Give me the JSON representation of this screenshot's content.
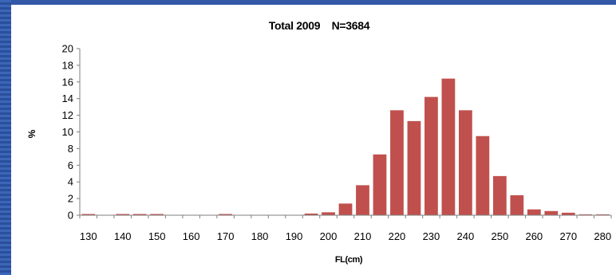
{
  "chart_data": {
    "type": "bar",
    "title": "Total 2009    N=3684",
    "xlabel": "FL(cm)",
    "ylabel": "%",
    "ylim": [
      0,
      20
    ],
    "yticks": [
      0,
      2,
      4,
      6,
      8,
      10,
      12,
      14,
      16,
      18,
      20
    ],
    "xticks": [
      130,
      140,
      150,
      160,
      170,
      180,
      190,
      200,
      210,
      220,
      230,
      240,
      250,
      260,
      270,
      280
    ],
    "categories": [
      130,
      135,
      140,
      145,
      150,
      155,
      160,
      165,
      170,
      175,
      180,
      185,
      190,
      195,
      200,
      205,
      210,
      215,
      220,
      225,
      230,
      235,
      240,
      245,
      250,
      255,
      260,
      265,
      270,
      275,
      280
    ],
    "values": [
      0.05,
      0,
      0.05,
      0.05,
      0.05,
      0,
      0,
      0,
      0.05,
      0,
      0,
      0,
      0,
      0.2,
      0.35,
      1.4,
      3.6,
      7.3,
      12.6,
      11.3,
      14.2,
      16.4,
      12.6,
      9.5,
      4.7,
      2.4,
      0.7,
      0.5,
      0.3,
      0.1,
      0.1
    ],
    "bar_color": "#c0504d",
    "grid": false,
    "legend": "none"
  }
}
